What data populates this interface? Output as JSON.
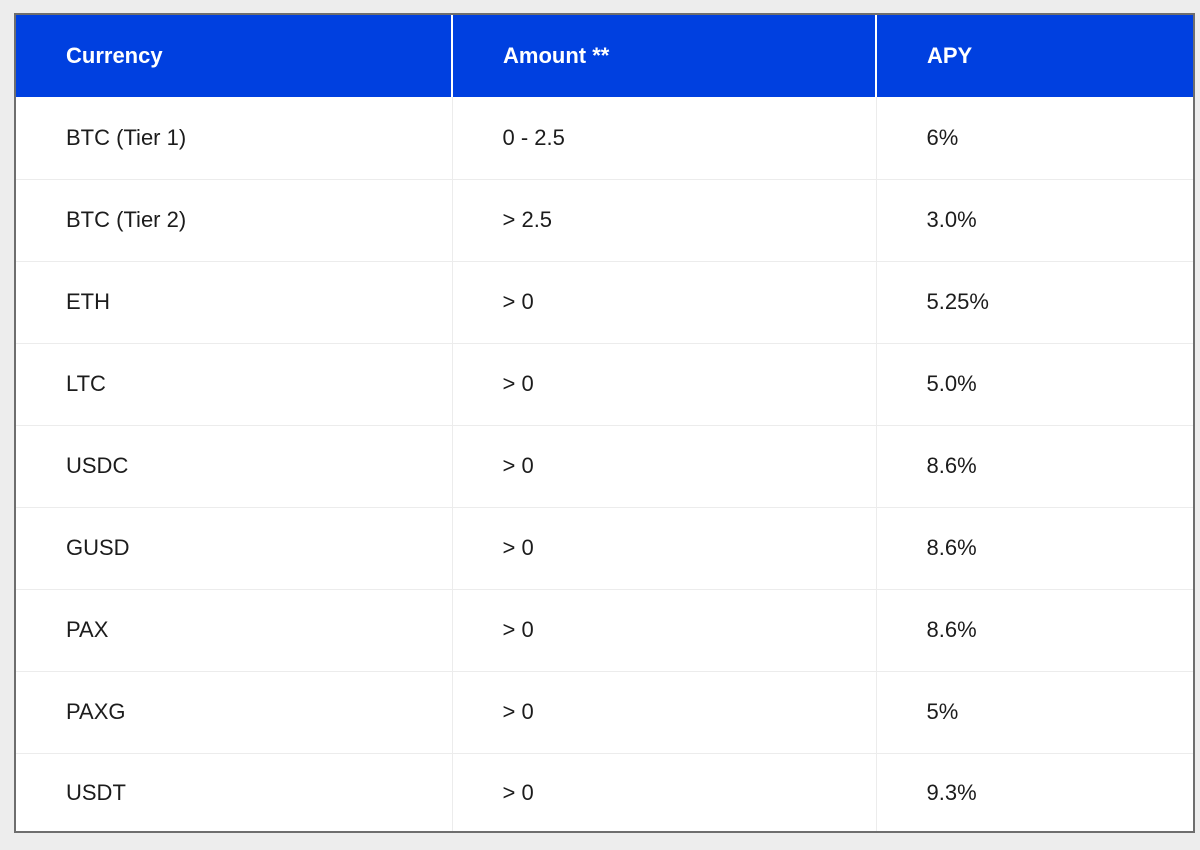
{
  "table": {
    "headers": {
      "currency": "Currency",
      "amount": "Amount **",
      "apy": "APY"
    },
    "rows": [
      {
        "currency": "BTC (Tier 1)",
        "amount": "0 - 2.5",
        "apy": "6%"
      },
      {
        "currency": "BTC (Tier 2)",
        "amount": "> 2.5",
        "apy": "3.0%"
      },
      {
        "currency": "ETH",
        "amount": "> 0",
        "apy": "5.25%"
      },
      {
        "currency": "LTC",
        "amount": "> 0",
        "apy": "5.0%"
      },
      {
        "currency": "USDC",
        "amount": "> 0",
        "apy": "8.6%"
      },
      {
        "currency": "GUSD",
        "amount": "> 0",
        "apy": "8.6%"
      },
      {
        "currency": "PAX",
        "amount": "> 0",
        "apy": "8.6%"
      },
      {
        "currency": "PAXG",
        "amount": "> 0",
        "apy": "5%"
      },
      {
        "currency": "USDT",
        "amount": "> 0",
        "apy": "9.3%"
      }
    ]
  },
  "colors": {
    "header_bg": "#0040e0",
    "header_text": "#ffffff",
    "body_text": "#1c1c1c",
    "frame_border": "#6e6e6e"
  }
}
